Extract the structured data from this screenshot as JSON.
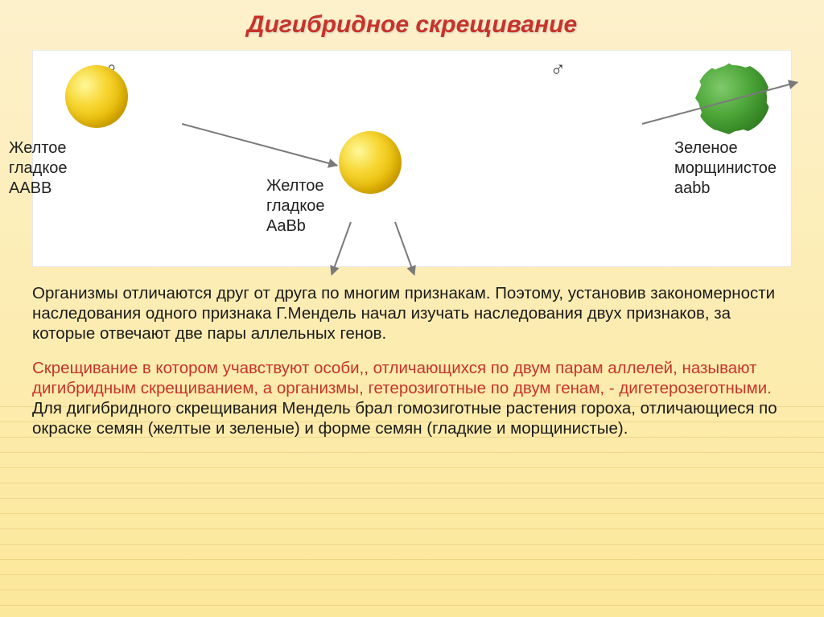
{
  "title": "Дигибридное скрещивание",
  "diagram": {
    "female_symbol": "♀",
    "male_symbol": "♂",
    "parent_left": {
      "line1": "Желтое",
      "line2": "гладкое",
      "genotype": "AABB",
      "color": "#f7d633"
    },
    "parent_right": {
      "line1": "Зеленое",
      "line2": "морщинистое",
      "genotype": "aabb",
      "color": "#4fa83a"
    },
    "offspring": {
      "line1": "Желтое",
      "line2": "гладкое",
      "genotype": "AaBb",
      "color": "#f7d633"
    }
  },
  "paragraphs": {
    "p1": "Организмы отличаются друг от друга по многим признакам. Поэтому, установив закономерности наследования одного признака  Г.Мендель начал изучать наследования двух признаков, за которые отвечают две пары аллельных генов.",
    "p2": "Скрещивание в котором учавствуют особи,, отличающихся  по двум парам аллелей, называют дигибридным скрещиванием, а организмы, гетерозиготные по двум генам, - дигетерозеготными.",
    "p3": "Для дигибридного скрещивания Мендель брал гомозиготные растения гороха, отличающиеся по окраске семян (желтые и зеленые) и форме семян (гладкие и морщинистые)."
  },
  "colors": {
    "title": "#c6342b",
    "emphasis": "#c6342b",
    "text": "#1a1a1a",
    "bg_top": "#fdf1cc",
    "bg_bottom": "#fce89a"
  },
  "fonts": {
    "title_size": 30,
    "body_size": 20.5,
    "label_size": 20
  }
}
